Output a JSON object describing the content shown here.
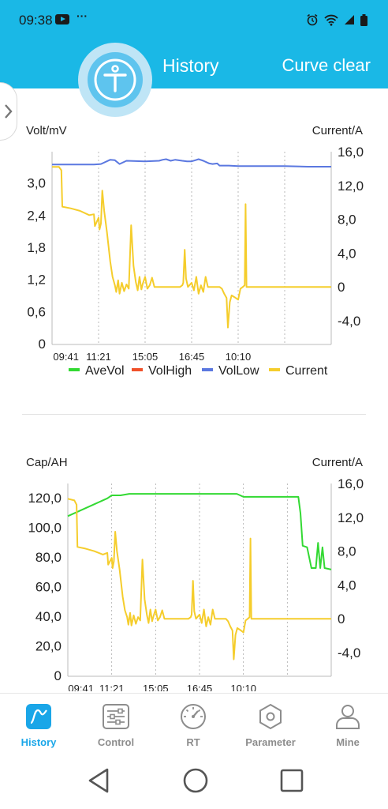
{
  "status_bar": {
    "time": "09:38",
    "dots": "···"
  },
  "header": {
    "title": "History",
    "action": "Curve clear"
  },
  "colors": {
    "brand": "#1ab8e6",
    "ave_vol": "#33d933",
    "vol_high": "#f0512a",
    "vol_low": "#5b78e0",
    "current": "#f5cd2c",
    "nav_active": "#1aa6e8"
  },
  "chart1": {
    "left_label": "Volt/mV",
    "right_label": "Current/A",
    "left_ticks": [
      "3,0",
      "2,4",
      "1,8",
      "1,2",
      "0,6",
      "0"
    ],
    "right_ticks": [
      "16,0",
      "12,0",
      "8,0",
      "4,0",
      "0",
      "-4,0"
    ],
    "x_ticks": [
      "09:41",
      "11:21",
      "15:05",
      "16:45",
      "10:10"
    ],
    "legend": [
      "AveVol",
      "VolHigh",
      "VolLow",
      "Current"
    ]
  },
  "chart2": {
    "left_label": "Cap/AH",
    "right_label": "Current/A",
    "left_ticks": [
      "120,0",
      "100,0",
      "80,0",
      "60,0",
      "40,0",
      "20,0",
      "0"
    ],
    "right_ticks": [
      "16,0",
      "12,0",
      "8,0",
      "4,0",
      "0",
      "-4,0"
    ],
    "x_ticks": [
      "09:41",
      "11:21",
      "15:05",
      "16:45",
      "10:10"
    ]
  },
  "chart_data": [
    {
      "type": "line",
      "xlabel": "",
      "ylabel": "Volt/mV",
      "y2label": "Current/A",
      "ylim": [
        0,
        3.6
      ],
      "y2lim": [
        -6.8,
        16.0
      ],
      "x": [
        0,
        1,
        2,
        3,
        4,
        5,
        6
      ],
      "x_ticks": [
        "09:41",
        "11:21",
        "15:05",
        "16:45",
        "10:10"
      ],
      "grid_x": true,
      "legend": "bottom",
      "series": [
        {
          "name": "VolLow",
          "axis": "left",
          "color": "#5b78e0",
          "points": [
            [
              0,
              3.36
            ],
            [
              0.3,
              3.36
            ],
            [
              0.5,
              3.36
            ],
            [
              0.9,
              3.36
            ],
            [
              1.05,
              3.37
            ],
            [
              1.25,
              3.45
            ],
            [
              1.35,
              3.44
            ],
            [
              1.45,
              3.37
            ],
            [
              1.6,
              3.43
            ],
            [
              2,
              3.42
            ],
            [
              2.3,
              3.43
            ],
            [
              2.38,
              3.45
            ],
            [
              2.45,
              3.46
            ],
            [
              2.55,
              3.43
            ],
            [
              2.65,
              3.45
            ],
            [
              2.8,
              3.43
            ],
            [
              2.9,
              3.42
            ],
            [
              3,
              3.42
            ],
            [
              3.08,
              3.44
            ],
            [
              3.15,
              3.46
            ],
            [
              3.25,
              3.43
            ],
            [
              3.38,
              3.38
            ],
            [
              3.45,
              3.37
            ],
            [
              3.55,
              3.38
            ],
            [
              3.6,
              3.34
            ],
            [
              3.8,
              3.34
            ],
            [
              4,
              3.33
            ],
            [
              4.2,
              3.33
            ],
            [
              4.4,
              3.33
            ],
            [
              5,
              3.33
            ],
            [
              5.5,
              3.32
            ],
            [
              6,
              3.32
            ]
          ]
        },
        {
          "name": "Current",
          "axis": "right",
          "color": "#f5cd2c",
          "points": [
            [
              0,
              14.2
            ],
            [
              0.15,
              14.2
            ],
            [
              0.2,
              13.8
            ],
            [
              0.22,
              9.5
            ],
            [
              0.4,
              9.3
            ],
            [
              0.6,
              9.0
            ],
            [
              0.8,
              8.5
            ],
            [
              0.9,
              8.6
            ],
            [
              0.92,
              7.2
            ],
            [
              1.0,
              8.2
            ],
            [
              1.02,
              6.8
            ],
            [
              1.05,
              7.5
            ],
            [
              1.08,
              11.4
            ],
            [
              1.12,
              9.0
            ],
            [
              1.18,
              6.5
            ],
            [
              1.25,
              3.0
            ],
            [
              1.3,
              1.2
            ],
            [
              1.35,
              0.2
            ],
            [
              1.38,
              -0.6
            ],
            [
              1.42,
              0.8
            ],
            [
              1.45,
              -0.8
            ],
            [
              1.5,
              0.5
            ],
            [
              1.55,
              -0.5
            ],
            [
              1.6,
              0.3
            ],
            [
              1.65,
              -0.2
            ],
            [
              1.7,
              7.3
            ],
            [
              1.75,
              2.5
            ],
            [
              1.8,
              0.6
            ],
            [
              1.84,
              -0.4
            ],
            [
              1.88,
              1.2
            ],
            [
              1.92,
              -0.3
            ],
            [
              1.95,
              0.4
            ],
            [
              2.0,
              1.2
            ],
            [
              2.05,
              -0.2
            ],
            [
              2.1,
              0.2
            ],
            [
              2.15,
              1.1
            ],
            [
              2.2,
              0.0
            ],
            [
              2.4,
              0.0
            ],
            [
              2.6,
              0.0
            ],
            [
              2.75,
              0.0
            ],
            [
              2.8,
              0.2
            ],
            [
              2.82,
              0.5
            ],
            [
              2.85,
              4.4
            ],
            [
              2.88,
              1.0
            ],
            [
              2.92,
              0.0
            ],
            [
              3.0,
              0.5
            ],
            [
              3.05,
              -0.4
            ],
            [
              3.1,
              1.2
            ],
            [
              3.15,
              -0.8
            ],
            [
              3.2,
              0.2
            ],
            [
              3.25,
              -0.6
            ],
            [
              3.3,
              1.2
            ],
            [
              3.35,
              0.0
            ],
            [
              3.5,
              0.0
            ],
            [
              3.6,
              0.0
            ],
            [
              3.65,
              -0.2
            ],
            [
              3.7,
              -0.8
            ],
            [
              3.75,
              -1.3
            ],
            [
              3.78,
              -4.8
            ],
            [
              3.82,
              -1.8
            ],
            [
              3.86,
              -1.0
            ],
            [
              3.92,
              -1.2
            ],
            [
              4.0,
              -1.5
            ],
            [
              4.05,
              -0.2
            ],
            [
              4.1,
              0.0
            ],
            [
              4.14,
              0.2
            ],
            [
              4.16,
              9.8
            ],
            [
              4.18,
              0.0
            ],
            [
              4.5,
              0.0
            ],
            [
              5.0,
              0.0
            ],
            [
              6.0,
              0.0
            ]
          ]
        }
      ]
    },
    {
      "type": "line",
      "xlabel": "",
      "ylabel": "Cap/AH",
      "y2label": "Current/A",
      "ylim": [
        0,
        130
      ],
      "y2lim": [
        -6.8,
        16.0
      ],
      "x": [
        0,
        1,
        2,
        3,
        4,
        5,
        6
      ],
      "x_ticks": [
        "09:41",
        "11:21",
        "15:05",
        "16:45",
        "10:10"
      ],
      "grid_x": true,
      "series": [
        {
          "name": "AveVol",
          "axis": "left",
          "color": "#33d933",
          "points": [
            [
              0,
              108
            ],
            [
              0.3,
              112
            ],
            [
              0.6,
              116
            ],
            [
              0.9,
              120
            ],
            [
              1.0,
              122
            ],
            [
              1.2,
              122
            ],
            [
              1.4,
              123
            ],
            [
              2.0,
              123
            ],
            [
              3.0,
              123
            ],
            [
              3.5,
              123
            ],
            [
              3.85,
              123
            ],
            [
              4.0,
              121
            ],
            [
              4.5,
              121
            ],
            [
              4.8,
              121
            ],
            [
              5.1,
              121
            ],
            [
              5.25,
              121
            ],
            [
              5.3,
              110
            ],
            [
              5.35,
              88
            ],
            [
              5.45,
              87
            ],
            [
              5.55,
              73
            ],
            [
              5.65,
              73
            ],
            [
              5.7,
              90
            ],
            [
              5.75,
              73
            ],
            [
              5.8,
              87
            ],
            [
              5.85,
              73
            ],
            [
              6,
              72
            ]
          ]
        },
        {
          "name": "Current",
          "axis": "right",
          "color": "#f5cd2c",
          "points": [
            [
              0,
              14.2
            ],
            [
              0.15,
              14.0
            ],
            [
              0.2,
              13.5
            ],
            [
              0.22,
              8.5
            ],
            [
              0.4,
              8.3
            ],
            [
              0.6,
              8.0
            ],
            [
              0.8,
              7.6
            ],
            [
              0.9,
              7.8
            ],
            [
              0.92,
              6.4
            ],
            [
              1.0,
              7.2
            ],
            [
              1.02,
              6.0
            ],
            [
              1.05,
              6.8
            ],
            [
              1.08,
              10.3
            ],
            [
              1.12,
              8.0
            ],
            [
              1.18,
              5.8
            ],
            [
              1.25,
              2.6
            ],
            [
              1.3,
              1.0
            ],
            [
              1.35,
              0.2
            ],
            [
              1.38,
              -0.7
            ],
            [
              1.42,
              0.7
            ],
            [
              1.45,
              -0.8
            ],
            [
              1.5,
              0.4
            ],
            [
              1.55,
              -0.6
            ],
            [
              1.6,
              0.2
            ],
            [
              1.65,
              -0.2
            ],
            [
              1.7,
              7.0
            ],
            [
              1.75,
              2.3
            ],
            [
              1.8,
              0.5
            ],
            [
              1.84,
              -0.5
            ],
            [
              1.88,
              1.1
            ],
            [
              1.92,
              -0.3
            ],
            [
              1.95,
              0.3
            ],
            [
              2.0,
              1.1
            ],
            [
              2.05,
              -0.2
            ],
            [
              2.1,
              0.2
            ],
            [
              2.15,
              1.0
            ],
            [
              2.2,
              0.0
            ],
            [
              2.4,
              0.0
            ],
            [
              2.6,
              0.0
            ],
            [
              2.75,
              0.0
            ],
            [
              2.8,
              0.2
            ],
            [
              2.82,
              0.5
            ],
            [
              2.85,
              4.5
            ],
            [
              2.88,
              0.9
            ],
            [
              2.92,
              0.0
            ],
            [
              3.0,
              0.5
            ],
            [
              3.05,
              -0.5
            ],
            [
              3.1,
              1.1
            ],
            [
              3.15,
              -0.9
            ],
            [
              3.2,
              0.2
            ],
            [
              3.25,
              -0.7
            ],
            [
              3.3,
              1.1
            ],
            [
              3.35,
              0.0
            ],
            [
              3.5,
              0.0
            ],
            [
              3.6,
              0.0
            ],
            [
              3.65,
              -0.3
            ],
            [
              3.7,
              -0.9
            ],
            [
              3.75,
              -1.4
            ],
            [
              3.78,
              -4.8
            ],
            [
              3.82,
              -1.9
            ],
            [
              3.86,
              -1.1
            ],
            [
              3.92,
              -1.3
            ],
            [
              4.0,
              -1.6
            ],
            [
              4.05,
              -0.2
            ],
            [
              4.1,
              0.0
            ],
            [
              4.14,
              0.2
            ],
            [
              4.16,
              9.5
            ],
            [
              4.18,
              0.0
            ],
            [
              4.5,
              0.0
            ],
            [
              5.0,
              0.0
            ],
            [
              6.0,
              0.0
            ]
          ]
        }
      ]
    }
  ],
  "nav": [
    {
      "id": "history",
      "label": "History",
      "icon": "history-wave-icon",
      "active": true
    },
    {
      "id": "control",
      "label": "Control",
      "icon": "sliders-icon",
      "active": false
    },
    {
      "id": "rt",
      "label": "RT",
      "icon": "gauge-icon",
      "active": false
    },
    {
      "id": "parameter",
      "label": "Parameter",
      "icon": "hexagon-nut-icon",
      "active": false
    },
    {
      "id": "mine",
      "label": "Mine",
      "icon": "person-icon",
      "active": false
    }
  ]
}
